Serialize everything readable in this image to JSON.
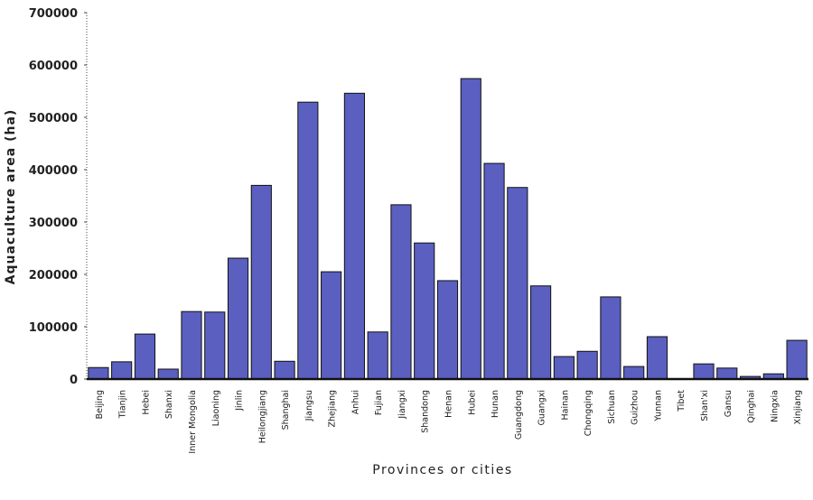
{
  "chart_data": {
    "type": "bar",
    "title": "",
    "xlabel": "Provinces or cities",
    "ylabel": "Aquaculture area (ha)",
    "ylim": [
      0,
      700000
    ],
    "yticks": [
      0,
      100000,
      200000,
      300000,
      400000,
      500000,
      600000,
      700000
    ],
    "grid": false,
    "bar_color": "#5a5fc0",
    "categories": [
      "Beijing",
      "Tianjin",
      "Hebei",
      "Shanxi",
      "Inner Mongolia",
      "Liaoning",
      "Jinlin",
      "Heilongjiang",
      "Shanghai",
      "Jiangsu",
      "Zhejiang",
      "Anhui",
      "Fujian",
      "Jiangxi",
      "Shandong",
      "Henan",
      "Hubei",
      "Hunan",
      "Guangdong",
      "Guangxi",
      "Hainan",
      "Chongqing",
      "Sichuan",
      "Guizhou",
      "Yunnan",
      "Tibet",
      "Shan'xi",
      "Gansu",
      "Qinghai",
      "Ningxia",
      "Xinjiang"
    ],
    "values": [
      22000,
      33000,
      86000,
      19000,
      129000,
      128000,
      231000,
      370000,
      34000,
      529000,
      205000,
      546000,
      90000,
      333000,
      260000,
      188000,
      574000,
      412000,
      366000,
      178000,
      43000,
      53000,
      157000,
      24000,
      81000,
      0,
      29000,
      21000,
      5000,
      10000,
      74000
    ]
  }
}
